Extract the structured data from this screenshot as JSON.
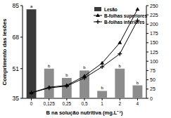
{
  "chart_data": {
    "type": "bar",
    "x_label": "B na solução nutritiva (mg.L⁻¹)",
    "y_label": "Comprimento das lesões",
    "categories": [
      "0",
      "0,125",
      "0,25",
      "0,5",
      "1",
      "2",
      "4"
    ],
    "ylim": [
      35,
      85
    ],
    "yticks": [
      35,
      51,
      68,
      85
    ],
    "y2lim": [
      0,
      250
    ],
    "y2ticks": [
      0,
      25,
      50,
      75,
      100,
      125,
      150,
      175,
      200,
      225,
      250
    ],
    "legend": "top-right",
    "annotations": [
      "a",
      "b",
      "b",
      "b",
      "b",
      "b",
      "b"
    ],
    "series": [
      {
        "name": "Lesão",
        "type": "bar",
        "colors": [
          "#3a3a3a",
          "#8c8c8c",
          "#8c8c8c",
          "#8c8c8c",
          "#8c8c8c",
          "#8c8c8c",
          "#8c8c8c"
        ],
        "values": [
          83,
          51,
          46,
          50,
          39,
          51,
          42
        ]
      },
      {
        "name": "B-folhas superiores",
        "type": "line",
        "axis": "y2",
        "color": "#000000",
        "marker": "triangle",
        "values": [
          15,
          30,
          35,
          60,
          95,
          150,
          240
        ]
      },
      {
        "name": "B-folhas inferiores",
        "type": "line",
        "axis": "y2",
        "color": "#000000",
        "marker": "cross",
        "values": [
          15,
          28,
          33,
          55,
          85,
          120,
          210
        ]
      }
    ]
  }
}
